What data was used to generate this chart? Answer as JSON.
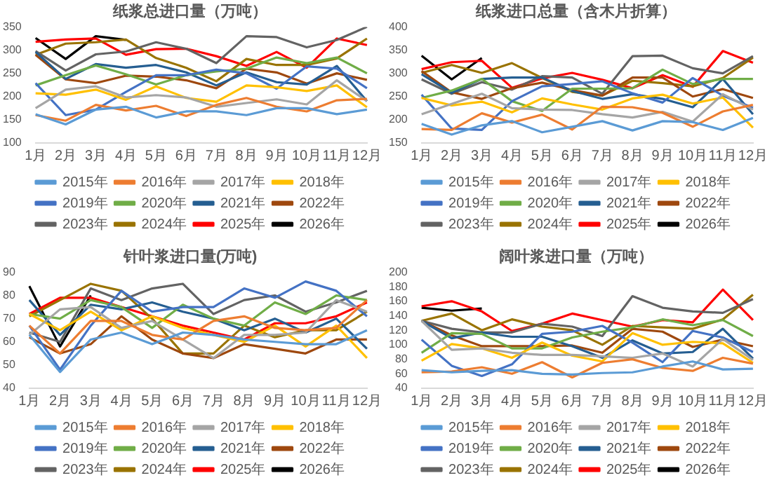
{
  "chart_data": [
    {
      "type": "line",
      "title": "纸浆总进口量（万吨）",
      "categories": [
        "1月",
        "2月",
        "3月",
        "4月",
        "5月",
        "6月",
        "7月",
        "8月",
        "9月",
        "10月",
        "11月",
        "12月"
      ],
      "ylim": [
        100,
        350
      ],
      "yticks": [
        100,
        150,
        200,
        250,
        300,
        350
      ],
      "legend": "bottom",
      "marker": "none",
      "series": [
        {
          "name": "2015年",
          "color": "#5b9bd5",
          "values": [
            162,
            140,
            172,
            178,
            155,
            168,
            168,
            160,
            175,
            175,
            162,
            172
          ]
        },
        {
          "name": "2016年",
          "color": "#ed7d31",
          "values": [
            160,
            148,
            182,
            170,
            180,
            158,
            182,
            197,
            178,
            168,
            192,
            195
          ]
        },
        {
          "name": "2017年",
          "color": "#a5a5a5",
          "values": [
            175,
            215,
            222,
            198,
            203,
            198,
            178,
            186,
            194,
            183,
            235,
            190
          ]
        },
        {
          "name": "2018年",
          "color": "#ffc000",
          "values": [
            207,
            204,
            215,
            193,
            222,
            197,
            189,
            224,
            220,
            212,
            224,
            177
          ]
        },
        {
          "name": "2019年",
          "color": "#4472c4",
          "values": [
            229,
            160,
            172,
            210,
            246,
            246,
            258,
            250,
            217,
            265,
            260,
            218
          ]
        },
        {
          "name": "2020年",
          "color": "#70ad47",
          "values": [
            224,
            246,
            267,
            248,
            226,
            246,
            254,
            260,
            284,
            272,
            284,
            250
          ]
        },
        {
          "name": "2021年",
          "color": "#255e91",
          "values": [
            296,
            238,
            270,
            262,
            268,
            252,
            224,
            252,
            231,
            226,
            266,
            190
          ]
        },
        {
          "name": "2022年",
          "color": "#9e480e",
          "values": [
            290,
            237,
            229,
            245,
            243,
            235,
            218,
            260,
            252,
            228,
            250,
            236
          ]
        },
        {
          "name": "2023年",
          "color": "#636363",
          "values": [
            298,
            256,
            291,
            297,
            317,
            303,
            272,
            330,
            328,
            306,
            322,
            350
          ]
        },
        {
          "name": "2024年",
          "color": "#997300",
          "values": [
            290,
            314,
            317,
            323,
            283,
            262,
            233,
            281,
            268,
            268,
            282,
            325
          ]
        },
        {
          "name": "2025年",
          "color": "#ff0000",
          "values": [
            318,
            323,
            325,
            290,
            302,
            303,
            287,
            266,
            296,
            262,
            325,
            311
          ]
        },
        {
          "name": "2026年",
          "color": "#000000",
          "values": [
            326,
            281,
            330,
            322,
            null,
            null,
            null,
            null,
            null,
            null,
            null,
            null
          ]
        }
      ]
    },
    {
      "type": "line",
      "title": "纸浆进口总量（含木片折算）",
      "categories": [
        "1月",
        "2月",
        "3月",
        "4月",
        "5月",
        "6月",
        "7月",
        "8月",
        "9月",
        "10月",
        "11月",
        "12月"
      ],
      "ylim": [
        150,
        400
      ],
      "yticks": [
        150,
        200,
        250,
        300,
        350,
        400
      ],
      "legend": "bottom",
      "marker": "none",
      "series": [
        {
          "name": "2015年",
          "color": "#5b9bd5",
          "values": [
            191,
            168,
            188,
            197,
            173,
            185,
            197,
            177,
            197,
            195,
            178,
            204
          ]
        },
        {
          "name": "2016年",
          "color": "#ed7d31",
          "values": [
            180,
            178,
            214,
            194,
            211,
            179,
            228,
            227,
            215,
            185,
            218,
            232
          ]
        },
        {
          "name": "2017年",
          "color": "#a5a5a5",
          "values": [
            212,
            234,
            256,
            225,
            222,
            221,
            212,
            205,
            217,
            196,
            255,
            222
          ]
        },
        {
          "name": "2018年",
          "color": "#ffc000",
          "values": [
            247,
            231,
            239,
            216,
            246,
            233,
            222,
            246,
            254,
            235,
            248,
            183
          ]
        },
        {
          "name": "2019年",
          "color": "#4472c4",
          "values": [
            254,
            181,
            178,
            240,
            272,
            277,
            283,
            257,
            237,
            290,
            252,
            226
          ]
        },
        {
          "name": "2020年",
          "color": "#70ad47",
          "values": [
            247,
            263,
            288,
            240,
            219,
            267,
            267,
            268,
            308,
            277,
            288,
            288
          ]
        },
        {
          "name": "2021年",
          "color": "#255e91",
          "values": [
            298,
            258,
            288,
            291,
            291,
            262,
            245,
            255,
            245,
            227,
            288,
            212
          ]
        },
        {
          "name": "2022年",
          "color": "#9e480e",
          "values": [
            305,
            259,
            245,
            268,
            280,
            264,
            252,
            291,
            291,
            250,
            266,
            247
          ]
        },
        {
          "name": "2023年",
          "color": "#636363",
          "values": [
            287,
            256,
            281,
            265,
            294,
            291,
            256,
            337,
            338,
            311,
            300,
            337
          ]
        },
        {
          "name": "2024年",
          "color": "#997300",
          "values": [
            301,
            318,
            301,
            322,
            290,
            260,
            252,
            284,
            279,
            272,
            290,
            334
          ]
        },
        {
          "name": "2025年",
          "color": "#ff0000",
          "values": [
            309,
            324,
            327,
            269,
            289,
            301,
            286,
            268,
            296,
            271,
            348,
            323
          ]
        },
        {
          "name": "2026年",
          "color": "#000000",
          "values": [
            338,
            287,
            333,
            null,
            null,
            null,
            null,
            null,
            null,
            null,
            null,
            null
          ]
        }
      ]
    },
    {
      "type": "line",
      "title": "针叶浆进口量(万吨)",
      "categories": [
        "1月",
        "2月",
        "3月",
        "4月",
        "5月",
        "6月",
        "7月",
        "8月",
        "9月",
        "10月",
        "11月",
        "12月"
      ],
      "ylim": [
        40,
        90
      ],
      "yticks": [
        40,
        50,
        60,
        70,
        80,
        90
      ],
      "legend": "bottom",
      "marker": "none",
      "series": [
        {
          "name": "2015年",
          "color": "#5b9bd5",
          "values": [
            63,
            47,
            61,
            64,
            59,
            64,
            63,
            61,
            60,
            59,
            59,
            65
          ]
        },
        {
          "name": "2016年",
          "color": "#ed7d31",
          "values": [
            67,
            55,
            69,
            69,
            63,
            61,
            69,
            71,
            66,
            65,
            66,
            78
          ]
        },
        {
          "name": "2017年",
          "color": "#a5a5a5",
          "values": [
            63,
            74,
            75,
            66,
            69,
            61,
            53,
            63,
            63,
            64,
            78,
            73
          ]
        },
        {
          "name": "2018年",
          "color": "#ffc000",
          "values": [
            72,
            65,
            73,
            65,
            71,
            66,
            63,
            60,
            67,
            58,
            67,
            53
          ]
        },
        {
          "name": "2019年",
          "color": "#4472c4",
          "values": [
            67,
            48,
            67,
            82,
            73,
            75,
            75,
            83,
            79,
            86,
            82,
            71
          ]
        },
        {
          "name": "2020年",
          "color": "#70ad47",
          "values": [
            72,
            70,
            78,
            75,
            66,
            76,
            70,
            67,
            77,
            72,
            80,
            78
          ]
        },
        {
          "name": "2021年",
          "color": "#255e91",
          "values": [
            78,
            63,
            76,
            74,
            77,
            73,
            70,
            65,
            70,
            64,
            70,
            57
          ]
        },
        {
          "name": "2022年",
          "color": "#9e480e",
          "values": [
            62,
            55,
            59,
            71,
            61,
            55,
            53,
            59,
            57,
            55,
            61,
            61
          ]
        },
        {
          "name": "2023年",
          "color": "#636363",
          "values": [
            64,
            60,
            83,
            78,
            83,
            85,
            72,
            78,
            80,
            73,
            77,
            82
          ]
        },
        {
          "name": "2024年",
          "color": "#997300",
          "values": [
            71,
            78,
            85,
            82,
            70,
            55,
            55,
            67,
            62,
            65,
            65,
            73
          ]
        },
        {
          "name": "2025年",
          "color": "#ff0000",
          "values": [
            72,
            79,
            79,
            75,
            71,
            67,
            64,
            61,
            68,
            68,
            71,
            77
          ]
        },
        {
          "name": "2026年",
          "color": "#000000",
          "values": [
            84,
            58,
            80,
            null,
            null,
            null,
            null,
            null,
            null,
            null,
            null,
            null
          ]
        }
      ]
    },
    {
      "type": "line",
      "title": "阔叶浆进口量（万吨）",
      "categories": [
        "1月",
        "2月",
        "3月",
        "4月",
        "5月",
        "6月",
        "7月",
        "8月",
        "9月",
        "10月",
        "11月",
        "12月"
      ],
      "ylim": [
        40,
        200
      ],
      "yticks": [
        40,
        60,
        80,
        100,
        120,
        140,
        160,
        180,
        200
      ],
      "legend": "bottom",
      "marker": "none",
      "series": [
        {
          "name": "2015年",
          "color": "#5b9bd5",
          "values": [
            65,
            62,
            64,
            65,
            60,
            59,
            61,
            62,
            70,
            77,
            66,
            67
          ]
        },
        {
          "name": "2016年",
          "color": "#ed7d31",
          "values": [
            62,
            63,
            69,
            60,
            76,
            55,
            75,
            80,
            68,
            64,
            82,
            74
          ]
        },
        {
          "name": "2017年",
          "color": "#a5a5a5",
          "values": [
            133,
            93,
            95,
            89,
            86,
            86,
            84,
            82,
            88,
            70,
            108,
            79
          ]
        },
        {
          "name": "2018年",
          "color": "#ffc000",
          "values": [
            78,
            101,
            95,
            82,
            103,
            85,
            77,
            116,
            100,
            104,
            102,
            75
          ]
        },
        {
          "name": "2019年",
          "color": "#4472c4",
          "values": [
            107,
            71,
            57,
            73,
            115,
            118,
            126,
            103,
            76,
            119,
            110,
            90
          ]
        },
        {
          "name": "2020年",
          "color": "#70ad47",
          "values": [
            89,
            116,
            115,
            95,
            95,
            110,
            118,
            124,
            135,
            127,
            134,
            112
          ]
        },
        {
          "name": "2021年",
          "color": "#255e91",
          "values": [
            133,
            109,
            117,
            111,
            111,
            98,
            82,
            106,
            88,
            90,
            122,
            81
          ]
        },
        {
          "name": "2022年",
          "color": "#9e480e",
          "values": [
            133,
            113,
            98,
            98,
            98,
            99,
            89,
            122,
            118,
            97,
            107,
            98
          ]
        },
        {
          "name": "2023年",
          "color": "#636363",
          "values": [
            133,
            122,
            117,
            117,
            129,
            125,
            112,
            167,
            151,
            146,
            144,
            163
          ]
        },
        {
          "name": "2024年",
          "color": "#997300",
          "values": [
            133,
            143,
            120,
            135,
            125,
            120,
            100,
            126,
            124,
            122,
            135,
            169
          ]
        },
        {
          "name": "2025年",
          "color": "#ff0000",
          "values": [
            153,
            160,
            146,
            119,
            129,
            143,
            134,
            125,
            134,
            131,
            176,
            134
          ]
        },
        {
          "name": "2026年",
          "color": "#000000",
          "values": [
            151,
            147,
            150,
            null,
            null,
            null,
            null,
            null,
            null,
            null,
            null,
            null
          ]
        }
      ]
    }
  ]
}
